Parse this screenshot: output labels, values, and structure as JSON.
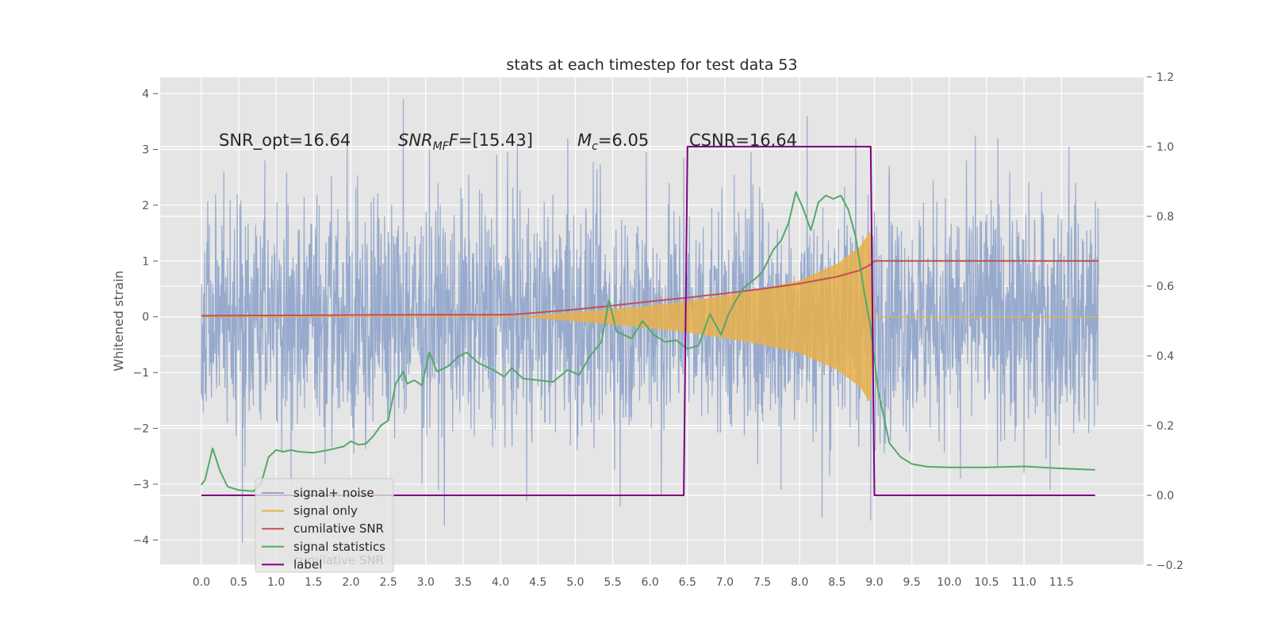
{
  "chart_data": {
    "type": "line",
    "title": "stats at each timestep for test data 53",
    "ylabel": "Whitened strain",
    "y2label": "",
    "xlim": [
      -0.55,
      12.6
    ],
    "ylim": [
      -4.45,
      4.3
    ],
    "y2lim": [
      -0.2,
      1.2
    ],
    "x_ticks": [
      0.0,
      0.5,
      1.0,
      1.5,
      2.0,
      2.5,
      3.0,
      3.5,
      4.0,
      4.5,
      5.0,
      5.5,
      6.0,
      6.5,
      7.0,
      7.5,
      8.0,
      8.5,
      9.0,
      9.5,
      10.0,
      10.5,
      11.0,
      11.5
    ],
    "x_tick_labels": [
      "0.0",
      "0.5",
      "1.0",
      "1.5",
      "2.0",
      "2.5",
      "3.0",
      "3.5",
      "4.0",
      "4.5",
      "5.0",
      "5.5",
      "6.0",
      "6.5",
      "7.0",
      "7.5",
      "8.0",
      "8.5",
      "9.0",
      "9.5",
      "10.0",
      "10.5",
      "11.0",
      "11.5"
    ],
    "y_ticks": [
      -4,
      -3,
      -2,
      -1,
      0,
      1,
      2,
      3,
      4
    ],
    "y_tick_labels": [
      "−4",
      "−3",
      "−2",
      "−1",
      "0",
      "1",
      "2",
      "3",
      "4"
    ],
    "y2_ticks": [
      -0.2,
      0.0,
      0.2,
      0.4,
      0.6,
      0.8,
      1.0,
      1.2
    ],
    "y2_tick_labels": [
      "−0.2",
      "0.0",
      "0.2",
      "0.4",
      "0.6",
      "0.8",
      "1.0",
      "1.2"
    ],
    "grid": true,
    "legend_position": "lower-left",
    "annotations": {
      "snr_opt": "SNR_opt=16.64",
      "snr_mf_main": "SNR",
      "snr_mf_sub": "MF",
      "snr_mf_value": "=[15.43]",
      "mc_main": "M",
      "mc_sub": "c",
      "mc_value": "=6.05",
      "csnr": "CSNR=16.64"
    },
    "legend_ghost_text": "cumilative SNR",
    "series": [
      {
        "name": "signal+ noise",
        "axis": "left",
        "color": "#92a6cb",
        "description": "whitened noise, amplitude envelope roughly -2 to +2.5 with spikes to about 3.9 and -4.1",
        "envelope_x": [
          0.0,
          12.0
        ],
        "envelope_upper": [
          1.9,
          1.9
        ],
        "envelope_lower": [
          -1.9,
          -1.9
        ],
        "spikes": [
          [
            0.3,
            2.6
          ],
          [
            0.55,
            -4.05
          ],
          [
            0.85,
            2.8
          ],
          [
            1.2,
            -3.0
          ],
          [
            1.95,
            3.05
          ],
          [
            2.7,
            3.9
          ],
          [
            2.95,
            -3.0
          ],
          [
            3.05,
            3.0
          ],
          [
            3.25,
            -3.75
          ],
          [
            3.95,
            2.9
          ],
          [
            4.35,
            -3.3
          ],
          [
            4.9,
            3.2
          ],
          [
            5.6,
            -3.4
          ],
          [
            5.95,
            2.95
          ],
          [
            6.15,
            -3.2
          ],
          [
            6.45,
            2.85
          ],
          [
            7.35,
            2.95
          ],
          [
            7.75,
            -3.1
          ],
          [
            8.1,
            3.6
          ],
          [
            8.3,
            -3.6
          ],
          [
            8.75,
            3.2
          ],
          [
            8.95,
            -3.65
          ],
          [
            9.2,
            2.7
          ],
          [
            10.15,
            -2.9
          ],
          [
            10.35,
            3.25
          ],
          [
            10.65,
            3.2
          ],
          [
            11.0,
            -2.8
          ],
          [
            11.35,
            -3.1
          ],
          [
            11.6,
            3.05
          ]
        ]
      },
      {
        "name": "signal only",
        "axis": "left",
        "color": "#e8b04a",
        "description": "chirp signal growing in amplitude until merger at about 9.0",
        "envelope_x": [
          4.2,
          5.0,
          6.0,
          6.5,
          7.0,
          7.5,
          8.0,
          8.5,
          8.8,
          8.95,
          9.0
        ],
        "envelope_amp": [
          0.0,
          0.08,
          0.2,
          0.28,
          0.38,
          0.5,
          0.65,
          0.95,
          1.25,
          1.55,
          0.0
        ]
      },
      {
        "name": "cumilative SNR",
        "axis": "right",
        "color": "#c44e52",
        "x": [
          0.0,
          1.0,
          2.0,
          3.0,
          4.0,
          4.2,
          4.5,
          5.0,
          5.5,
          6.0,
          6.5,
          7.0,
          7.5,
          8.0,
          8.5,
          8.8,
          8.95,
          9.0,
          12.0
        ],
        "values": [
          0.515,
          0.516,
          0.517,
          0.518,
          0.518,
          0.519,
          0.524,
          0.533,
          0.544,
          0.556,
          0.567,
          0.579,
          0.592,
          0.607,
          0.627,
          0.645,
          0.662,
          0.672,
          0.672
        ]
      },
      {
        "name": "signal statistics",
        "axis": "right",
        "color": "#55a868",
        "x": [
          0.0,
          0.05,
          0.15,
          0.25,
          0.35,
          0.5,
          0.7,
          0.8,
          0.9,
          1.0,
          1.1,
          1.2,
          1.3,
          1.5,
          1.7,
          1.9,
          2.0,
          2.1,
          2.2,
          2.3,
          2.4,
          2.5,
          2.6,
          2.7,
          2.75,
          2.85,
          2.95,
          3.05,
          3.15,
          3.3,
          3.45,
          3.55,
          3.7,
          3.9,
          4.05,
          4.15,
          4.3,
          4.5,
          4.7,
          4.9,
          5.05,
          5.2,
          5.35,
          5.45,
          5.55,
          5.75,
          5.9,
          6.05,
          6.2,
          6.35,
          6.5,
          6.65,
          6.8,
          6.95,
          7.05,
          7.15,
          7.25,
          7.4,
          7.5,
          7.65,
          7.75,
          7.85,
          7.95,
          8.05,
          8.15,
          8.25,
          8.35,
          8.45,
          8.55,
          8.65,
          8.75,
          8.85,
          8.95,
          9.05,
          9.2,
          9.35,
          9.5,
          9.7,
          10.0,
          10.5,
          11.0,
          11.5,
          11.95
        ],
        "values": [
          0.03,
          0.045,
          0.135,
          0.07,
          0.025,
          0.015,
          0.012,
          0.035,
          0.11,
          0.13,
          0.125,
          0.13,
          0.125,
          0.122,
          0.13,
          0.14,
          0.155,
          0.145,
          0.148,
          0.17,
          0.2,
          0.215,
          0.32,
          0.355,
          0.32,
          0.33,
          0.315,
          0.41,
          0.355,
          0.37,
          0.4,
          0.41,
          0.38,
          0.36,
          0.34,
          0.365,
          0.335,
          0.33,
          0.325,
          0.36,
          0.345,
          0.4,
          0.44,
          0.56,
          0.47,
          0.45,
          0.5,
          0.46,
          0.44,
          0.445,
          0.42,
          0.43,
          0.52,
          0.46,
          0.52,
          0.56,
          0.595,
          0.62,
          0.64,
          0.705,
          0.73,
          0.78,
          0.87,
          0.82,
          0.76,
          0.84,
          0.86,
          0.85,
          0.86,
          0.82,
          0.74,
          0.6,
          0.48,
          0.3,
          0.15,
          0.11,
          0.09,
          0.082,
          0.08,
          0.08,
          0.083,
          0.077,
          0.073
        ]
      },
      {
        "name": "label",
        "axis": "right",
        "color": "#800080",
        "x": [
          0.0,
          6.45,
          6.5,
          8.95,
          9.0,
          11.95
        ],
        "values": [
          0.0,
          0.0,
          1.0,
          1.0,
          0.0,
          0.0
        ]
      }
    ]
  }
}
